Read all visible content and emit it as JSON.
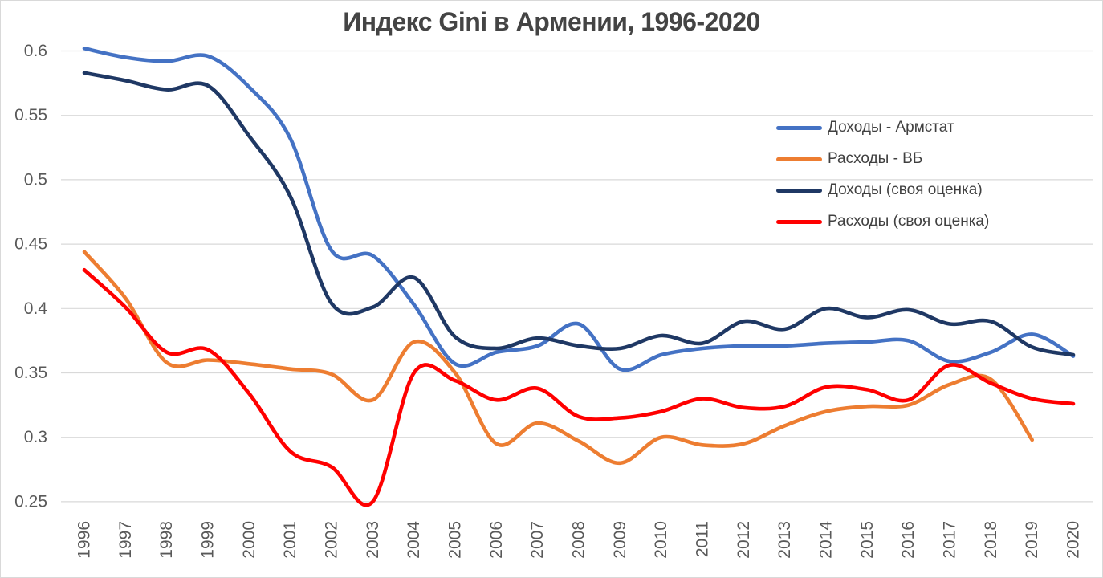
{
  "chart_data": {
    "type": "line",
    "title": "Индекс Gini в Армении, 1996-2020",
    "x": [
      1996,
      1997,
      1998,
      1999,
      2000,
      2001,
      2002,
      2003,
      2004,
      2005,
      2006,
      2007,
      2008,
      2009,
      2010,
      2011,
      2012,
      2013,
      2014,
      2015,
      2016,
      2017,
      2018,
      2019,
      2020
    ],
    "ylim": [
      0.25,
      0.6
    ],
    "ytick_labels": [
      "0.6",
      "0.55",
      "0.5",
      "0.45",
      "0.4",
      "0.35",
      "0.3",
      "0.25"
    ],
    "ytick_values": [
      0.6,
      0.55,
      0.5,
      0.45,
      0.4,
      0.35,
      0.3,
      0.25
    ],
    "grid": true,
    "line_style": "smooth",
    "legend_position": "inside-top-right",
    "grid_color": "#D9D9D9",
    "axis_label_color": "#595959",
    "series": [
      {
        "name": "Доходы - Армстат",
        "color": "#4472C4",
        "values": [
          0.602,
          0.595,
          0.592,
          0.596,
          0.572,
          0.532,
          0.445,
          0.441,
          0.403,
          0.357,
          0.366,
          0.371,
          0.388,
          0.353,
          0.364,
          0.369,
          0.371,
          0.371,
          0.373,
          0.374,
          0.375,
          0.359,
          0.366,
          0.38,
          0.363
        ]
      },
      {
        "name": "Расходы - ВБ",
        "color": "#ED7D31",
        "values": [
          0.444,
          0.408,
          0.358,
          0.36,
          0.357,
          0.353,
          0.349,
          0.329,
          0.374,
          0.35,
          0.295,
          0.311,
          0.297,
          0.28,
          0.3,
          0.294,
          0.295,
          0.309,
          0.32,
          0.324,
          0.325,
          0.341,
          0.345,
          0.298,
          null
        ]
      },
      {
        "name": "Доходы (своя оценка)",
        "color": "#1F3864",
        "values": [
          0.583,
          0.577,
          0.57,
          0.573,
          0.534,
          0.487,
          0.404,
          0.401,
          0.424,
          0.378,
          0.369,
          0.377,
          0.371,
          0.369,
          0.379,
          0.373,
          0.39,
          0.384,
          0.4,
          0.393,
          0.399,
          0.388,
          0.39,
          0.37,
          0.364
        ]
      },
      {
        "name": "Расходы (своя оценка)",
        "color": "#FF0000",
        "values": [
          0.43,
          0.401,
          0.366,
          0.368,
          0.334,
          0.289,
          0.277,
          0.25,
          0.35,
          0.344,
          0.329,
          0.338,
          0.316,
          0.315,
          0.32,
          0.33,
          0.323,
          0.324,
          0.339,
          0.337,
          0.329,
          0.356,
          0.342,
          0.33,
          0.326
        ]
      }
    ]
  }
}
